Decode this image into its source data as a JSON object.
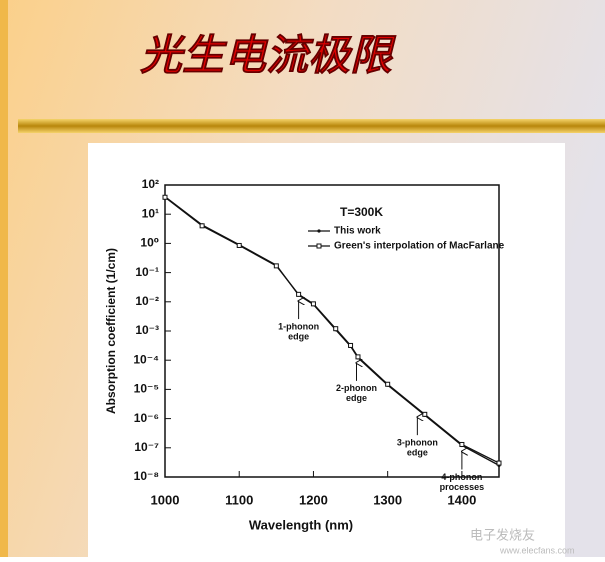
{
  "slide_title": "光生电流极限",
  "watermark": {
    "name": "电子发烧友",
    "site": "www.elecfans.com"
  },
  "chart_data": {
    "type": "line",
    "x_label": "Wavelength (nm)",
    "y_label": "Absorption coefficient (1/cm)",
    "legend_title": "T=300K",
    "log_y": true,
    "xlim": [
      1000,
      1450
    ],
    "xticks": [
      1000,
      1100,
      1200,
      1300,
      1400
    ],
    "ylim": [
      1e-08,
      100
    ],
    "yticks": [
      {
        "value": 100,
        "label": "10²"
      },
      {
        "value": 10,
        "label": "10¹"
      },
      {
        "value": 1,
        "label": "10⁰"
      },
      {
        "value": 0.1,
        "label": "10⁻¹"
      },
      {
        "value": 0.01,
        "label": "10⁻²"
      },
      {
        "value": 0.001,
        "label": "10⁻³"
      },
      {
        "value": 0.0001,
        "label": "10⁻⁴"
      },
      {
        "value": 1e-05,
        "label": "10⁻⁵"
      },
      {
        "value": 1e-06,
        "label": "10⁻⁶"
      },
      {
        "value": 1e-07,
        "label": "10⁻⁷"
      },
      {
        "value": 1e-08,
        "label": "10⁻⁸"
      }
    ],
    "x": [
      1000,
      1050,
      1100,
      1150,
      1180,
      1200,
      1230,
      1250,
      1260,
      1300,
      1350,
      1400,
      1450
    ],
    "series": [
      {
        "name": "This work",
        "color": "#111111",
        "marker": "dot",
        "values": [
          40,
          4.3,
          0.9,
          0.18,
          0.017,
          0.008,
          0.0011,
          0.0003,
          0.00012,
          1.4e-05,
          1.3e-06,
          1.2e-07,
          2.5e-08
        ]
      },
      {
        "name": "Green's interpolation of MacFarlane",
        "color": "#111111",
        "marker": "square",
        "values": [
          38,
          4.0,
          0.85,
          0.17,
          0.018,
          0.0085,
          0.0012,
          0.00032,
          0.00013,
          1.5e-05,
          1.4e-06,
          1.3e-07,
          3e-08
        ]
      }
    ],
    "annotations": [
      {
        "lines": [
          "1-phonon",
          "edge"
        ],
        "x": 1180,
        "y": 0.017
      },
      {
        "lines": [
          "2-phonon",
          "edge"
        ],
        "x": 1258,
        "y": 0.00013
      },
      {
        "lines": [
          "3-phonon",
          "edge"
        ],
        "x": 1340,
        "y": 1.8e-06
      },
      {
        "lines": [
          "4-phonon",
          "processes"
        ],
        "x": 1400,
        "y": 1.2e-07
      }
    ]
  }
}
